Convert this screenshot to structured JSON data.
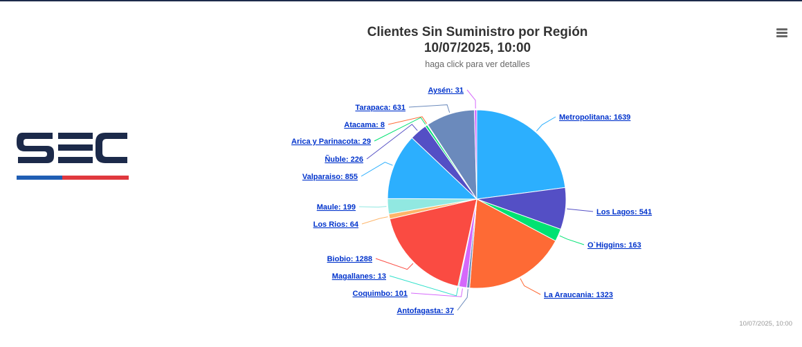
{
  "logo": {
    "text": "SEC",
    "colors": {
      "navy": "#1c2a4a",
      "blue": "#1f5eb4",
      "red": "#e0383e"
    }
  },
  "header": {
    "title_line1": "Clientes Sin Suministro por Región",
    "title_line2": "10/07/2025, 10:00",
    "subtitle": "haga click para ver detalles"
  },
  "menu": {
    "icon": "hamburger-menu-icon"
  },
  "credits": "10/07/2025, 10:00",
  "chart_data": {
    "type": "pie",
    "title": "Clientes Sin Suministro por Región",
    "subtitle": "haga click para ver detalles",
    "slices": [
      {
        "name": "Metropolitana",
        "value": 1639,
        "color": "#2caffe"
      },
      {
        "name": "Los Lagos",
        "value": 541,
        "color": "#544fc5"
      },
      {
        "name": "O`Higgins",
        "value": 163,
        "color": "#00e272"
      },
      {
        "name": "La Araucania",
        "value": 1323,
        "color": "#fe6a35"
      },
      {
        "name": "Antofagasta",
        "value": 37,
        "color": "#6b8abc"
      },
      {
        "name": "Coquimbo",
        "value": 101,
        "color": "#d568fb"
      },
      {
        "name": "Magallanes",
        "value": 13,
        "color": "#2ee0ca"
      },
      {
        "name": "Biobio",
        "value": 1288,
        "color": "#fa4b42"
      },
      {
        "name": "Los Rios",
        "value": 64,
        "color": "#feb56a"
      },
      {
        "name": "Maule",
        "value": 199,
        "color": "#91e8e1"
      },
      {
        "name": "Valparaiso",
        "value": 855,
        "color": "#2caffe"
      },
      {
        "name": "Ñuble",
        "value": 226,
        "color": "#544fc5"
      },
      {
        "name": "Arica y Parinacota",
        "value": 29,
        "color": "#00e272"
      },
      {
        "name": "Atacama",
        "value": 8,
        "color": "#fe6a35"
      },
      {
        "name": "Tarapaca",
        "value": 631,
        "color": "#6b8abc"
      },
      {
        "name": "Aysén",
        "value": 31,
        "color": "#d568fb"
      }
    ],
    "labels": [
      "Metropolitana: 1639",
      "Los Lagos: 541",
      "O`Higgins: 163",
      "La Araucania: 1323",
      "Antofagasta: 37",
      "Coquimbo: 101",
      "Magallanes: 13",
      "Biobio: 1288",
      "Los Rios: 64",
      "Maule: 199",
      "Valparaiso: 855",
      "Ñuble: 226",
      "Arica y Parinacota: 29",
      "Atacama: 8",
      "Tarapaca: 631",
      "Aysén: 31"
    ]
  }
}
